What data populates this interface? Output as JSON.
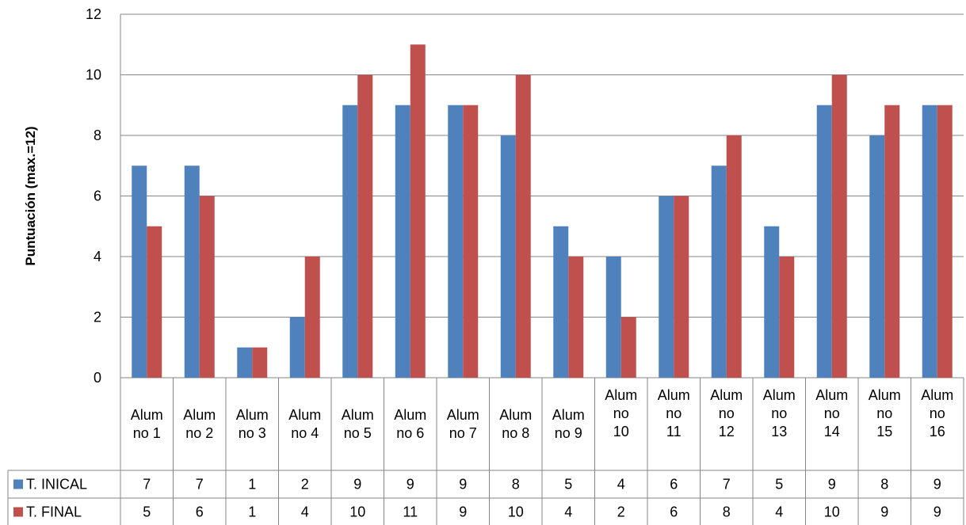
{
  "chart_data": {
    "type": "bar",
    "ylabel": "Puntuación (max.=12)",
    "ylim": [
      0,
      12
    ],
    "yticks": [
      "0",
      "2",
      "4",
      "6",
      "8",
      "10",
      "12"
    ],
    "grid": true,
    "legend": "data-table-left",
    "categories": [
      [
        "Alum",
        "no 1"
      ],
      [
        "Alum",
        "no 2"
      ],
      [
        "Alum",
        "no 3"
      ],
      [
        "Alum",
        "no 4"
      ],
      [
        "Alum",
        "no 5"
      ],
      [
        "Alum",
        "no 6"
      ],
      [
        "Alum",
        "no 7"
      ],
      [
        "Alum",
        "no 8"
      ],
      [
        "Alum",
        "no 9"
      ],
      [
        "Alum",
        "no",
        "10"
      ],
      [
        "Alum",
        "no",
        "11"
      ],
      [
        "Alum",
        "no",
        "12"
      ],
      [
        "Alum",
        "no",
        "13"
      ],
      [
        "Alum",
        "no",
        "14"
      ],
      [
        "Alum",
        "no",
        "15"
      ],
      [
        "Alum",
        "no",
        "16"
      ]
    ],
    "series": [
      {
        "name": "T. INICAL",
        "color": "#4F81BD",
        "values": [
          7,
          7,
          1,
          2,
          9,
          9,
          9,
          8,
          5,
          4,
          6,
          7,
          5,
          9,
          8,
          9
        ]
      },
      {
        "name": "T. FINAL",
        "color": "#C0504D",
        "values": [
          5,
          6,
          1,
          4,
          10,
          11,
          9,
          10,
          4,
          2,
          6,
          8,
          4,
          10,
          9,
          9
        ]
      }
    ]
  }
}
